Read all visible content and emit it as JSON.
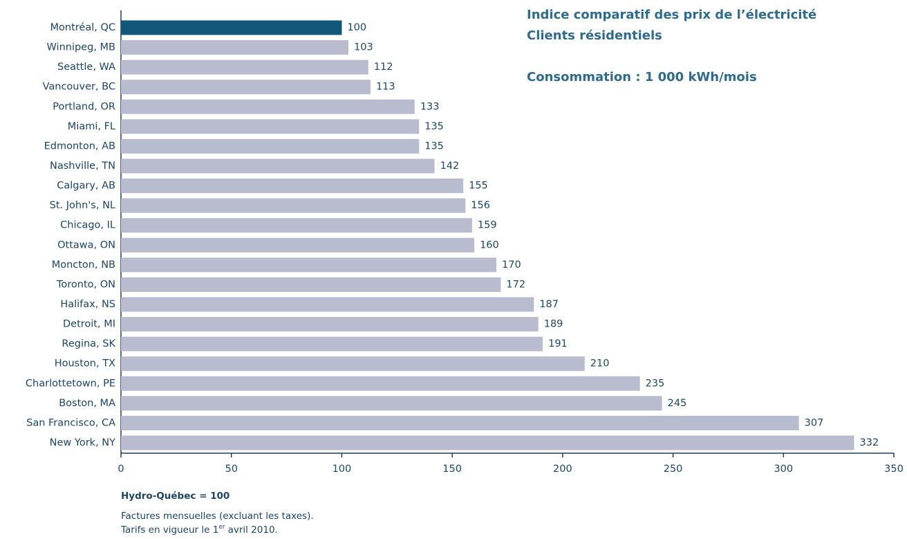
{
  "chart_data": {
    "type": "barh",
    "title": "Indice comparatif des prix de l’électricité",
    "subtitle": "Clients résidentiels",
    "annotation": "Consommation : 1 000 kWh/mois",
    "categories": [
      "Montréal, QC",
      "Winnipeg, MB",
      "Seattle, WA",
      "Vancouver, BC",
      "Portland, OR",
      "Miami, FL",
      "Edmonton, AB",
      "Nashville, TN",
      "Calgary, AB",
      "St. John's, NL",
      "Chicago, IL",
      "Ottawa, ON",
      "Moncton, NB",
      "Toronto, ON",
      "Halifax, NS",
      "Detroit, MI",
      "Regina, SK",
      "Houston, TX",
      "Charlottetown, PE",
      "Boston, MA",
      "San Francisco, CA",
      "New York, NY"
    ],
    "values": [
      100,
      103,
      112,
      113,
      133,
      135,
      135,
      142,
      155,
      156,
      159,
      160,
      170,
      172,
      187,
      189,
      191,
      210,
      235,
      245,
      307,
      332
    ],
    "colors": [
      "#12567a",
      "#b9bccf",
      "#b9bccf",
      "#b9bccf",
      "#b9bccf",
      "#b9bccf",
      "#b9bccf",
      "#b9bccf",
      "#b9bccf",
      "#b9bccf",
      "#b9bccf",
      "#b9bccf",
      "#b9bccf",
      "#b9bccf",
      "#b9bccf",
      "#b9bccf",
      "#b9bccf",
      "#b9bccf",
      "#b9bccf",
      "#b9bccf",
      "#b9bccf",
      "#b9bccf"
    ],
    "xlim": [
      0,
      350
    ],
    "xticks": [
      0,
      50,
      100,
      150,
      200,
      250,
      300,
      350
    ],
    "notes": {
      "base": "Hydro-Québec = 100",
      "line1": "Factures mensuelles (excluant les taxes).",
      "line2": [
        "Tarifs en vigueur le 1",
        "er",
        "avril 2010."
      ]
    }
  }
}
